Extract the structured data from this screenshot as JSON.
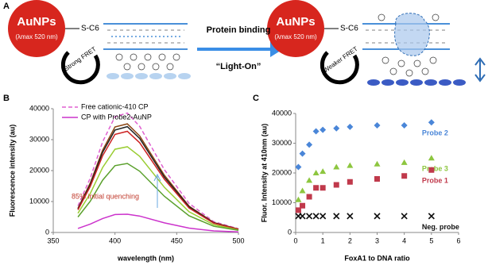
{
  "panel_labels": [
    "A",
    "B",
    "C"
  ],
  "diagram": {
    "left_particle": "AuNPs",
    "left_wavelength": "(λmax 520 nm)",
    "left_linker": "S-C6",
    "left_fret": "Strong FRET",
    "arrow_label": "Protein binding",
    "arrow_sublabel": "“Light-On”",
    "right_particle": "AuNPs",
    "right_wavelength": "(λmax 520 nm)",
    "right_linker": "S-C6",
    "right_fret": "Weaker FRET"
  },
  "chart_data": [
    {
      "type": "line",
      "xlabel": "wavelength (nm)",
      "ylabel": "Fluorescence intensity (au)",
      "annotation": "85% initial quenching",
      "x": [
        370,
        380,
        390,
        400,
        410,
        420,
        440,
        460,
        480,
        500
      ],
      "xlim": [
        350,
        500
      ],
      "xticks": [
        350,
        400,
        450,
        500
      ],
      "ylim": [
        0,
        40000
      ],
      "yticks": [
        0,
        10000,
        20000,
        30000,
        40000
      ],
      "series": [
        {
          "name": "Free cationic-410 CP",
          "color": "#e060d0",
          "dashed": true,
          "values": [
            8600,
            17600,
            29300,
            37400,
            38600,
            34300,
            20300,
            9400,
            3500,
            1200
          ]
        },
        {
          "color": "#8b4513",
          "values": [
            7800,
            16000,
            26600,
            34100,
            35100,
            31200,
            18500,
            8500,
            3200,
            1100
          ]
        },
        {
          "color": "#222222",
          "values": [
            7600,
            15500,
            25900,
            33100,
            34200,
            30400,
            17900,
            8300,
            3100,
            1000
          ]
        },
        {
          "color": "#cc2222",
          "values": [
            7300,
            14900,
            24800,
            31700,
            32700,
            29000,
            17200,
            7900,
            3000,
            1000
          ]
        },
        {
          "color": "#9acd32",
          "values": [
            6200,
            12600,
            21000,
            26900,
            27700,
            24600,
            14600,
            6700,
            2500,
            800
          ]
        },
        {
          "color": "#5aa02c",
          "values": [
            5000,
            10100,
            16900,
            21600,
            22300,
            19800,
            11700,
            5400,
            2000,
            700
          ]
        },
        {
          "name": "CP with Probe2-AuNP",
          "color": "#cc33cc",
          "values": [
            1300,
            2700,
            4500,
            5800,
            5900,
            5300,
            3100,
            1400,
            500,
            200
          ]
        }
      ]
    },
    {
      "type": "scatter",
      "xlabel": "FoxA1 to DNA ratio",
      "ylabel": "Fluor. Intensity at 410nm (au)",
      "x": [
        0.1,
        0.25,
        0.5,
        0.75,
        1,
        1.5,
        2,
        3,
        4,
        5
      ],
      "xlim": [
        0,
        6
      ],
      "xticks": [
        0,
        1,
        2,
        3,
        4,
        5,
        6
      ],
      "ylim": [
        0,
        40000
      ],
      "yticks": [
        0,
        10000,
        20000,
        30000,
        40000
      ],
      "series": [
        {
          "name": "Probe 2",
          "color": "#4a86d8",
          "marker": "diamond",
          "values": [
            22000,
            26500,
            29500,
            34000,
            34500,
            35000,
            35500,
            36000,
            36000,
            37000
          ]
        },
        {
          "name": "Probe 3",
          "color": "#8dc63f",
          "marker": "triangle",
          "values": [
            11000,
            14000,
            17500,
            20000,
            20500,
            22000,
            22500,
            23000,
            23500,
            25000
          ]
        },
        {
          "name": "Probe 1",
          "color": "#c0394b",
          "marker": "square",
          "values": [
            7500,
            9000,
            12000,
            15000,
            15000,
            16000,
            17000,
            18000,
            19000,
            21000
          ]
        },
        {
          "name": "Neg. probe",
          "color": "#111111",
          "marker": "x",
          "values": [
            5500,
            5500,
            5500,
            5500,
            5500,
            5500,
            5500,
            5500,
            5500,
            5500
          ]
        }
      ]
    }
  ]
}
